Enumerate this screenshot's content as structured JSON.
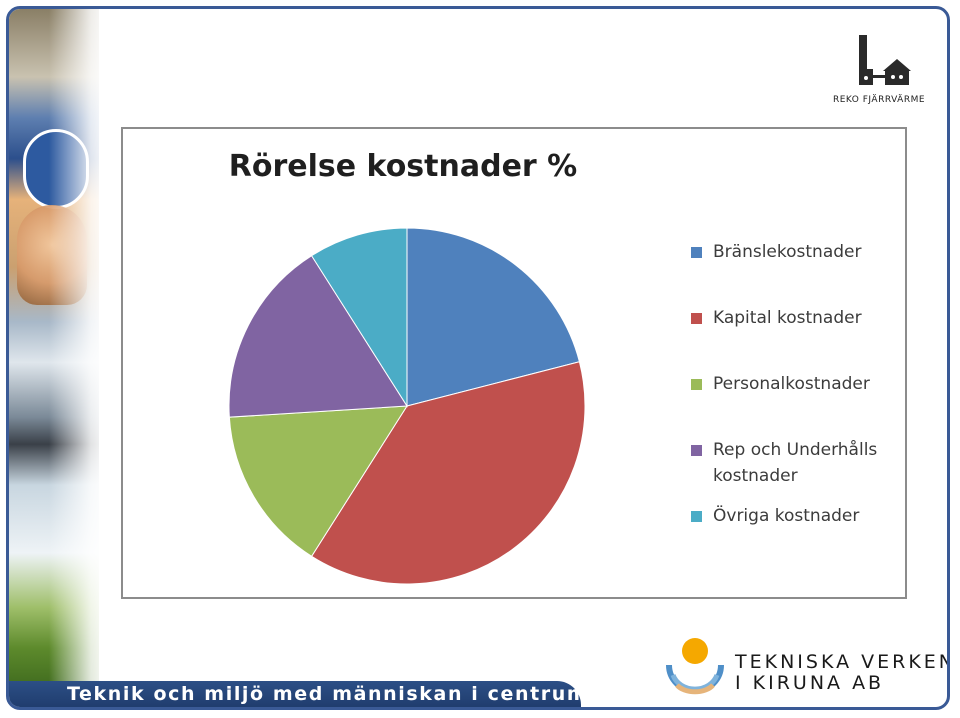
{
  "branding": {
    "top_logo_text": "REKO FJÄRRVÄRME",
    "footer_slogan": "Teknik och miljö med människan i centrum",
    "company_line1": "TEKNISKA VERKEN",
    "company_line2": "I KIRUNA AB",
    "colors": {
      "frame_border": "#3a5a96",
      "footer_bar": "#2c4f86",
      "logo_sun": "#f5a800",
      "logo_ring": "#4f8fc8"
    }
  },
  "chart_data": {
    "type": "pie",
    "title": "Rörelse kostnader %",
    "categories": [
      "Bränslekostnader",
      "Kapital kostnader",
      "Personalkostnader",
      "Rep och Underhålls kostnader",
      "Övriga kostnader"
    ],
    "values": [
      21,
      38,
      15,
      17,
      9
    ],
    "colors": [
      "#4f81bd",
      "#c0504d",
      "#9bbb59",
      "#8064a2",
      "#4bacc6"
    ],
    "start_angle_deg": 0,
    "direction": "clockwise",
    "legend_position": "right"
  }
}
